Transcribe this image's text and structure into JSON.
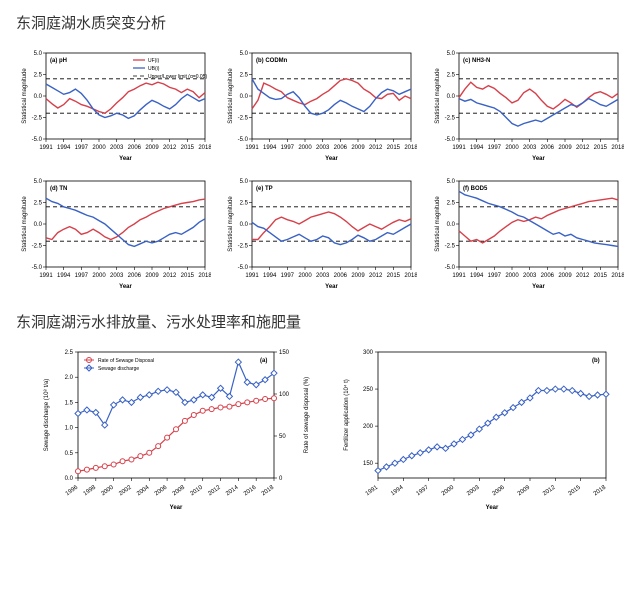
{
  "section1": {
    "title": "东洞庭湖水质突变分析"
  },
  "section2": {
    "title": "东洞庭湖污水排放量、污水处理率和施肥量"
  },
  "small_charts_common": {
    "ylim": [
      -5,
      5
    ],
    "ytick_step": 2.5,
    "ylabel": "Statistical magnitude",
    "xlabel": "Year",
    "dashed_upper": 2.0,
    "dashed_lower": -2.0,
    "dashed_mid": 0,
    "label_fontsize": 6,
    "title_fontsize": 7,
    "x_years": [
      1991,
      1994,
      1997,
      2000,
      2003,
      2006,
      2009,
      2012,
      2015,
      2018
    ],
    "background_color": "#ffffff",
    "axis_color": "#000000",
    "series_colors": {
      "UF": "#d6404a",
      "UB": "#3a62c5"
    },
    "legend": {
      "items": [
        "UF(i)",
        "UB(i)",
        "Upper/Lower limit (α=0.05)"
      ],
      "show_on": "a"
    }
  },
  "small_charts": [
    {
      "id": "a",
      "title": "(a) pH",
      "uf": [
        -0.3,
        -0.9,
        -1.4,
        -1.0,
        -0.3,
        -0.6,
        -1.0,
        -1.2,
        -1.5,
        -1.8,
        -2.0,
        -1.5,
        -0.8,
        -0.2,
        0.5,
        0.8,
        1.2,
        1.5,
        1.3,
        1.6,
        1.4,
        1.0,
        0.8,
        0.4,
        0.8,
        0.5,
        -0.2,
        0.4
      ],
      "ub": [
        1.4,
        1.0,
        0.6,
        0.2,
        0.4,
        0.8,
        0.3,
        -0.5,
        -1.5,
        -2.2,
        -2.5,
        -2.3,
        -2.0,
        -2.2,
        -2.6,
        -2.3,
        -1.6,
        -1.0,
        -0.5,
        -0.8,
        -1.2,
        -1.5,
        -1.0,
        -0.3,
        0.2,
        -0.2,
        -0.6,
        -0.3
      ]
    },
    {
      "id": "b",
      "title": "(b) CODMn",
      "uf": [
        -1.5,
        -0.5,
        1.5,
        1.2,
        0.8,
        0.5,
        -0.2,
        -0.5,
        -0.8,
        -1.0,
        -0.6,
        -0.3,
        0.2,
        0.6,
        1.2,
        1.8,
        2.0,
        1.8,
        1.5,
        0.8,
        0.4,
        -0.2,
        -0.3,
        0.2,
        0.3,
        -0.5,
        0.0,
        -0.3
      ],
      "ub": [
        2.0,
        0.8,
        0.3,
        -0.2,
        -0.4,
        -0.3,
        0.2,
        0.5,
        -0.2,
        -1.2,
        -2.0,
        -2.2,
        -2.0,
        -1.6,
        -1.0,
        -0.5,
        -0.8,
        -1.2,
        -1.5,
        -1.8,
        -1.2,
        -0.3,
        0.4,
        0.8,
        0.6,
        0.2,
        0.5,
        0.8
      ]
    },
    {
      "id": "c",
      "title": "(c) NH3-N",
      "uf": [
        -0.2,
        0.8,
        1.6,
        1.0,
        0.8,
        1.2,
        0.9,
        0.3,
        -0.2,
        -0.8,
        -0.5,
        0.4,
        0.8,
        0.3,
        -0.5,
        -1.2,
        -1.5,
        -1.0,
        -0.4,
        -0.8,
        -1.3,
        -0.8,
        -0.2,
        0.3,
        0.5,
        0.2,
        -0.2,
        0.3
      ],
      "ub": [
        -0.3,
        -0.6,
        -0.4,
        -0.8,
        -1.0,
        -1.2,
        -1.4,
        -1.8,
        -2.5,
        -3.2,
        -3.5,
        -3.2,
        -3.0,
        -2.8,
        -3.0,
        -2.6,
        -2.2,
        -1.8,
        -1.4,
        -1.0,
        -1.2,
        -0.8,
        -0.3,
        -0.6,
        -1.0,
        -1.2,
        -0.8,
        -0.4
      ]
    },
    {
      "id": "d",
      "title": "(d) TN",
      "uf": [
        -1.6,
        -1.8,
        -1.0,
        -0.6,
        -0.3,
        -0.6,
        -1.2,
        -1.0,
        -0.6,
        -1.0,
        -1.5,
        -1.8,
        -1.5,
        -1.0,
        -0.4,
        0.0,
        0.5,
        0.8,
        1.2,
        1.5,
        1.8,
        2.0,
        2.2,
        2.4,
        2.5,
        2.6,
        2.8,
        2.9
      ],
      "ub": [
        3.0,
        2.6,
        2.4,
        2.0,
        1.8,
        1.6,
        1.3,
        1.0,
        0.8,
        0.4,
        0.0,
        -0.6,
        -1.2,
        -1.8,
        -2.4,
        -2.6,
        -2.3,
        -2.0,
        -2.2,
        -2.0,
        -1.6,
        -1.2,
        -1.0,
        -1.2,
        -0.8,
        -0.4,
        0.2,
        0.6
      ]
    },
    {
      "id": "e",
      "title": "(e) TP",
      "uf": [
        -1.8,
        -1.8,
        -1.0,
        -0.3,
        0.5,
        0.8,
        0.5,
        0.3,
        0.0,
        0.4,
        0.8,
        1.0,
        1.2,
        1.4,
        1.2,
        0.8,
        0.3,
        -0.3,
        -0.8,
        -0.4,
        0.0,
        -0.3,
        -0.6,
        -0.2,
        0.2,
        0.5,
        0.3,
        0.6
      ],
      "ub": [
        0.2,
        -0.3,
        -0.5,
        -1.0,
        -1.5,
        -2.0,
        -1.8,
        -1.5,
        -1.2,
        -1.6,
        -2.0,
        -1.8,
        -1.4,
        -1.6,
        -2.2,
        -2.4,
        -2.2,
        -1.8,
        -1.3,
        -1.6,
        -2.0,
        -1.8,
        -1.4,
        -1.0,
        -1.2,
        -0.8,
        -0.4,
        0.0
      ]
    },
    {
      "id": "f",
      "title": "(f) BOD5",
      "uf": [
        -0.8,
        -1.4,
        -2.0,
        -1.8,
        -2.2,
        -1.8,
        -1.4,
        -0.8,
        -0.3,
        0.2,
        0.5,
        0.3,
        0.5,
        0.8,
        0.6,
        1.0,
        1.3,
        1.6,
        1.8,
        2.0,
        2.2,
        2.4,
        2.6,
        2.7,
        2.8,
        2.9,
        3.0,
        2.8
      ],
      "ub": [
        3.8,
        3.4,
        3.2,
        3.0,
        2.7,
        2.4,
        2.2,
        2.0,
        1.7,
        1.4,
        1.0,
        0.8,
        0.4,
        0.0,
        -0.4,
        -0.8,
        -1.2,
        -1.0,
        -1.4,
        -1.2,
        -1.6,
        -1.8,
        -2.0,
        -2.2,
        -2.3,
        -2.4,
        -2.5,
        -2.6
      ]
    }
  ],
  "bottom_charts": {
    "a": {
      "label": "(a)",
      "xlabel": "Year",
      "y1label": "Sewage discharge (10⁸ t/a)",
      "y2label": "Rate of sewage disposal (%)",
      "x_years": [
        1996,
        1998,
        2000,
        2002,
        2004,
        2006,
        2008,
        2010,
        2012,
        2014,
        2016,
        2018
      ],
      "x_all": [
        1996,
        1997,
        1998,
        1999,
        2000,
        2001,
        2002,
        2003,
        2004,
        2005,
        2006,
        2007,
        2008,
        2009,
        2010,
        2011,
        2012,
        2013,
        2014,
        2015,
        2016,
        2017,
        2018
      ],
      "y1lim": [
        0.0,
        2.5
      ],
      "y1tick_step": 0.5,
      "y2lim": [
        0,
        150
      ],
      "y2tick_step": 50,
      "series": {
        "rate": {
          "label": "Rate of Sewage Disposal",
          "color": "#d6404a",
          "marker": "circle",
          "values": [
            8,
            10,
            12,
            14,
            16,
            20,
            22,
            26,
            30,
            38,
            48,
            58,
            68,
            75,
            80,
            82,
            84,
            85,
            88,
            90,
            92,
            94,
            95
          ]
        },
        "discharge": {
          "label": "Sewage discharge",
          "color": "#3a62c5",
          "marker": "diamond",
          "values": [
            1.28,
            1.35,
            1.3,
            1.05,
            1.45,
            1.55,
            1.5,
            1.6,
            1.65,
            1.72,
            1.75,
            1.7,
            1.5,
            1.55,
            1.65,
            1.6,
            1.78,
            1.62,
            2.3,
            1.9,
            1.85,
            1.95,
            2.08
          ]
        }
      },
      "legend_pos": "top-left",
      "label_fontsize": 7,
      "background_color": "#ffffff"
    },
    "b": {
      "label": "(b)",
      "xlabel": "Year",
      "ylabel": "Fertilizer application (10⁴ t)",
      "x_years": [
        1991,
        1994,
        1997,
        2000,
        2003,
        2006,
        2009,
        2012,
        2015,
        2018
      ],
      "x_all": [
        1991,
        1992,
        1993,
        1994,
        1995,
        1996,
        1997,
        1998,
        1999,
        2000,
        2001,
        2002,
        2003,
        2004,
        2005,
        2006,
        2007,
        2008,
        2009,
        2010,
        2011,
        2012,
        2013,
        2014,
        2015,
        2016,
        2017,
        2018
      ],
      "ylim": [
        130,
        300
      ],
      "ytick_vals": [
        150,
        200,
        250,
        300
      ],
      "series": {
        "fert": {
          "color": "#3a62c5",
          "marker": "diamond",
          "values": [
            140,
            145,
            150,
            155,
            160,
            164,
            168,
            172,
            170,
            176,
            182,
            188,
            196,
            204,
            212,
            218,
            225,
            232,
            238,
            248,
            248,
            250,
            250,
            248,
            244,
            240,
            242,
            243
          ]
        }
      },
      "label_fontsize": 7,
      "background_color": "#ffffff"
    }
  }
}
